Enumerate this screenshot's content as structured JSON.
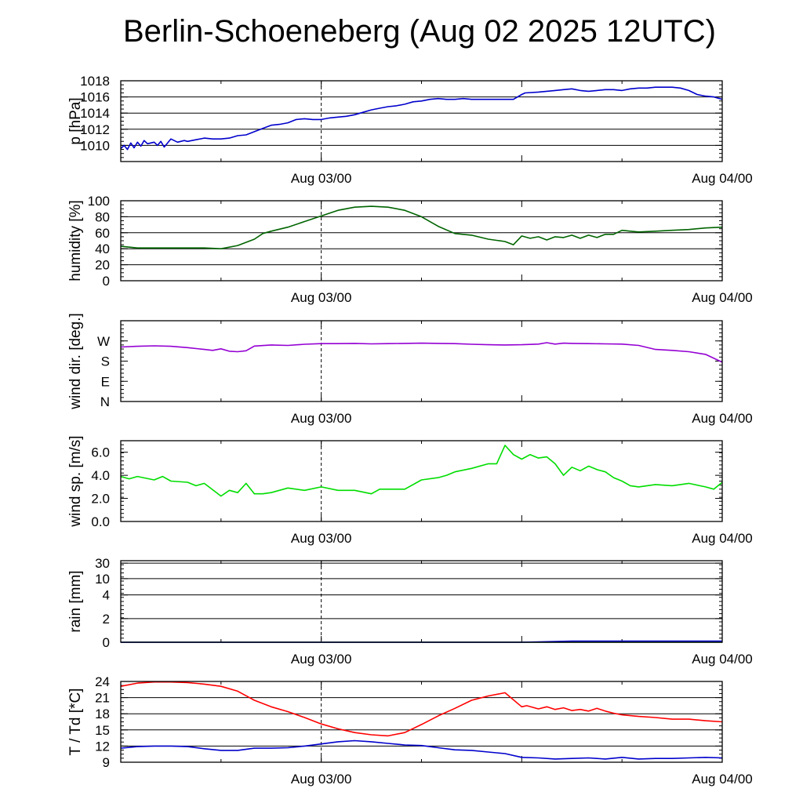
{
  "title": "Berlin-Schoeneberg (Aug 02 2025 12UTC)",
  "chart_data": [
    {
      "type": "line",
      "ylabel": "p [hPa]",
      "ylim": [
        1008,
        1018
      ],
      "yticks": [
        1010,
        1012,
        1014,
        1016,
        1018
      ],
      "ytick_labels": [
        "1010",
        "1012",
        "1014",
        "1016",
        "1018"
      ],
      "grid": true,
      "xlim": [
        0,
        36
      ],
      "xticks": [
        12,
        36
      ],
      "xtick_labels": [
        "Aug 03/00",
        "Aug 04/00"
      ],
      "marker_x": 12,
      "series": [
        {
          "color": "#0000cc",
          "x": [
            0,
            0.2,
            0.4,
            0.6,
            0.8,
            1,
            1.2,
            1.4,
            1.6,
            1.8,
            2,
            2.2,
            2.4,
            2.6,
            3,
            3.4,
            3.8,
            4,
            4.5,
            5,
            5.5,
            6,
            6.5,
            7,
            7.5,
            8,
            8.5,
            9,
            9.5,
            10,
            10.5,
            11,
            11.5,
            12,
            12.5,
            13,
            13.5,
            14,
            14.5,
            15,
            15.5,
            16,
            16.5,
            17,
            17.5,
            18,
            18.5,
            19,
            19.5,
            20,
            20.5,
            21,
            21.5,
            22,
            22.5,
            23,
            23.5,
            24,
            24.2,
            25,
            25.5,
            26,
            26.5,
            27,
            27.5,
            28,
            28.5,
            29,
            29.5,
            30,
            30.5,
            31,
            31.5,
            32,
            32.5,
            33,
            33.5,
            34,
            34.5,
            35,
            35.5,
            36
          ],
          "values": [
            1009.6,
            1010,
            1009.5,
            1010.3,
            1009.7,
            1010.4,
            1009.9,
            1010.6,
            1010.2,
            1010.3,
            1010.4,
            1010,
            1010.5,
            1009.8,
            1010.8,
            1010.4,
            1010.6,
            1010.5,
            1010.7,
            1010.9,
            1010.8,
            1010.8,
            1010.9,
            1011.2,
            1011.3,
            1011.7,
            1012.1,
            1012.5,
            1012.6,
            1012.8,
            1013.2,
            1013.3,
            1013.2,
            1013.2,
            1013.4,
            1013.5,
            1013.6,
            1013.8,
            1014.1,
            1014.4,
            1014.6,
            1014.8,
            1014.9,
            1015.1,
            1015.4,
            1015.5,
            1015.7,
            1015.8,
            1015.7,
            1015.7,
            1015.8,
            1015.7,
            1015.7,
            1015.7,
            1015.7,
            1015.7,
            1015.7,
            1016.3,
            1016.5,
            1016.6,
            1016.7,
            1016.8,
            1016.9,
            1017,
            1016.8,
            1016.7,
            1016.8,
            1016.9,
            1016.9,
            1016.8,
            1017,
            1017.1,
            1017.1,
            1017.2,
            1017.2,
            1017.2,
            1017.1,
            1016.8,
            1016.3,
            1016.1,
            1016,
            1015.7
          ]
        }
      ]
    },
    {
      "type": "line",
      "ylabel": "humidity [%]",
      "ylim": [
        0,
        100
      ],
      "yticks": [
        0,
        20,
        40,
        60,
        80,
        100
      ],
      "ytick_labels": [
        "0",
        "20",
        "40",
        "60",
        "80",
        "100"
      ],
      "grid": true,
      "xlim": [
        0,
        36
      ],
      "xticks": [
        12,
        36
      ],
      "xtick_labels": [
        "Aug 03/00",
        "Aug 04/00"
      ],
      "marker_x": 12,
      "series": [
        {
          "color": "#006400",
          "x": [
            0,
            1,
            2,
            3,
            4,
            5,
            6,
            7,
            8,
            8.5,
            9,
            10,
            11,
            12,
            13,
            14,
            15,
            16,
            17,
            18,
            19,
            20,
            21,
            22,
            23,
            23.5,
            24,
            24.5,
            25,
            25.5,
            26,
            26.5,
            27,
            27.5,
            28,
            28.5,
            29,
            29.5,
            30,
            30.5,
            31,
            32,
            33,
            34,
            35,
            36
          ],
          "values": [
            43,
            41,
            41,
            41,
            41,
            41,
            40,
            44,
            52,
            59,
            62,
            67,
            74,
            81,
            88,
            92,
            93,
            92,
            88,
            80,
            68,
            59,
            57,
            52,
            49,
            45,
            56,
            53,
            55,
            51,
            55,
            54,
            57,
            53,
            57,
            54,
            58,
            58,
            63,
            62,
            61,
            62,
            63,
            64,
            66,
            67
          ]
        }
      ]
    },
    {
      "type": "line",
      "ylabel": "wind dir. [deg.]",
      "ylim": [
        0,
        360
      ],
      "yticks": [
        0,
        90,
        180,
        270
      ],
      "ytick_labels": [
        "N",
        "E",
        "S",
        "W"
      ],
      "grid": false,
      "xlim": [
        0,
        36
      ],
      "xticks": [
        12,
        36
      ],
      "xtick_labels": [
        "Aug 03/00",
        "Aug 04/00"
      ],
      "marker_x": 12,
      "series": [
        {
          "color": "#9400d3",
          "x": [
            0,
            1,
            2,
            3,
            4,
            5,
            5.5,
            6,
            6.5,
            7,
            7.5,
            8,
            9,
            10,
            11,
            12,
            13,
            14,
            15,
            16,
            17,
            18,
            19,
            20,
            21,
            22,
            23,
            24,
            25,
            25.5,
            26,
            26.5,
            27,
            28,
            29,
            30,
            31,
            32,
            33,
            34,
            35,
            36
          ],
          "values": [
            243,
            246,
            248,
            246,
            240,
            232,
            228,
            235,
            224,
            222,
            226,
            247,
            252,
            250,
            255,
            258,
            258,
            259,
            257,
            258,
            259,
            260,
            259,
            258,
            255,
            253,
            252,
            253,
            256,
            262,
            256,
            260,
            259,
            258,
            257,
            256,
            250,
            232,
            228,
            222,
            210,
            175
          ]
        }
      ]
    },
    {
      "type": "line",
      "ylabel": "wind sp. [m/s]",
      "ylim": [
        0,
        7
      ],
      "yticks": [
        0,
        2,
        4,
        6
      ],
      "ytick_labels": [
        "0.0",
        "2.0",
        "4.0",
        "6.0"
      ],
      "grid": false,
      "xlim": [
        0,
        36
      ],
      "xticks": [
        12,
        36
      ],
      "xtick_labels": [
        "Aug 03/00",
        "Aug 04/00"
      ],
      "marker_x": 12,
      "series": [
        {
          "color": "#00dd00",
          "x": [
            0,
            0.5,
            1,
            2,
            2.5,
            3,
            4,
            4.5,
            5,
            6,
            6.5,
            7,
            7.5,
            8,
            8.5,
            9,
            10,
            11,
            12,
            13,
            14,
            15,
            15.5,
            16,
            17,
            18,
            19,
            19.5,
            20,
            21,
            22,
            22.5,
            23,
            23.5,
            24,
            24.5,
            25,
            25.5,
            26,
            26.5,
            27,
            27.5,
            28,
            28.5,
            29,
            29.5,
            30,
            30.5,
            31,
            32,
            33,
            34,
            35,
            35.5,
            36
          ],
          "values": [
            3.9,
            3.7,
            3.9,
            3.6,
            3.9,
            3.5,
            3.4,
            3.1,
            3.3,
            2.2,
            2.7,
            2.5,
            3.3,
            2.4,
            2.4,
            2.5,
            2.9,
            2.7,
            3.0,
            2.7,
            2.7,
            2.4,
            2.8,
            2.8,
            2.8,
            3.6,
            3.8,
            4.0,
            4.3,
            4.6,
            5.0,
            5.0,
            6.6,
            5.8,
            5.4,
            5.8,
            5.5,
            5.6,
            5.0,
            4.0,
            4.7,
            4.4,
            4.8,
            4.5,
            4.3,
            3.8,
            3.5,
            3.1,
            3.0,
            3.2,
            3.1,
            3.3,
            3.0,
            2.8,
            3.4
          ]
        }
      ]
    },
    {
      "type": "line",
      "ylabel": "rain [mm]",
      "ylim": [
        0,
        30
      ],
      "yticks": [
        0,
        2,
        4,
        10,
        30
      ],
      "ytick_labels": [
        "0",
        "2",
        "4",
        "10",
        "30"
      ],
      "grid": true,
      "xlim": [
        0,
        36
      ],
      "xticks": [
        12,
        36
      ],
      "xtick_labels": [
        "Aug 03/00",
        "Aug 04/00"
      ],
      "marker_x": 12,
      "series": [
        {
          "color": "#006400",
          "x": [
            0,
            36
          ],
          "values": [
            0,
            0
          ]
        },
        {
          "color": "#0000cc",
          "x": [
            0,
            24,
            27,
            36
          ],
          "values": [
            0,
            0,
            0.1,
            0.1
          ]
        }
      ]
    },
    {
      "type": "line",
      "ylabel": "T / Td [*C]",
      "ylim": [
        9,
        24
      ],
      "yticks": [
        9,
        12,
        15,
        18,
        21,
        24
      ],
      "ytick_labels": [
        "9",
        "12",
        "15",
        "18",
        "21",
        "24"
      ],
      "grid": true,
      "xlim": [
        0,
        36
      ],
      "xticks": [
        12,
        36
      ],
      "xtick_labels": [
        "Aug 03/00",
        "Aug 04/00"
      ],
      "marker_x": 12,
      "series": [
        {
          "color": "#ff0000",
          "x": [
            0,
            1,
            2,
            3,
            4,
            5,
            6,
            7,
            8,
            9,
            10,
            11,
            12,
            13,
            14,
            15,
            16,
            17,
            18,
            19,
            20,
            21,
            22,
            23,
            24,
            24.3,
            25,
            25.5,
            26,
            26.5,
            27,
            27.5,
            28,
            28.5,
            29,
            29.5,
            30,
            31,
            32,
            33,
            34,
            35,
            36
          ],
          "values": [
            23.1,
            23.7,
            23.9,
            23.9,
            23.8,
            23.5,
            23.1,
            22.2,
            20.5,
            19.3,
            18.4,
            17.3,
            16.1,
            15.2,
            14.5,
            14.1,
            13.9,
            14.5,
            16.0,
            17.6,
            19.0,
            20.5,
            21.3,
            21.9,
            19.3,
            19.5,
            18.9,
            19.3,
            18.8,
            19.1,
            18.6,
            18.8,
            18.5,
            19.0,
            18.5,
            18.1,
            17.8,
            17.5,
            17.3,
            17.0,
            17.0,
            16.7,
            16.5
          ]
        },
        {
          "color": "#0000cc",
          "x": [
            0,
            1,
            2,
            3,
            4,
            5,
            6,
            7,
            8,
            9,
            10,
            11,
            12,
            13,
            14,
            15,
            16,
            17,
            18,
            19,
            20,
            21,
            22,
            23,
            24,
            25,
            26,
            27,
            28,
            29,
            30,
            31,
            32,
            33,
            34,
            35,
            36
          ],
          "values": [
            11.6,
            11.9,
            12.0,
            12.0,
            11.9,
            11.5,
            11.2,
            11.2,
            11.6,
            11.6,
            11.7,
            12.0,
            12.4,
            12.8,
            13.0,
            12.8,
            12.5,
            12.2,
            12.1,
            11.7,
            11.3,
            11.2,
            10.9,
            10.6,
            9.9,
            9.8,
            9.6,
            9.7,
            9.8,
            9.6,
            9.9,
            9.6,
            9.7,
            9.7,
            9.8,
            9.9,
            9.8
          ]
        }
      ]
    }
  ]
}
